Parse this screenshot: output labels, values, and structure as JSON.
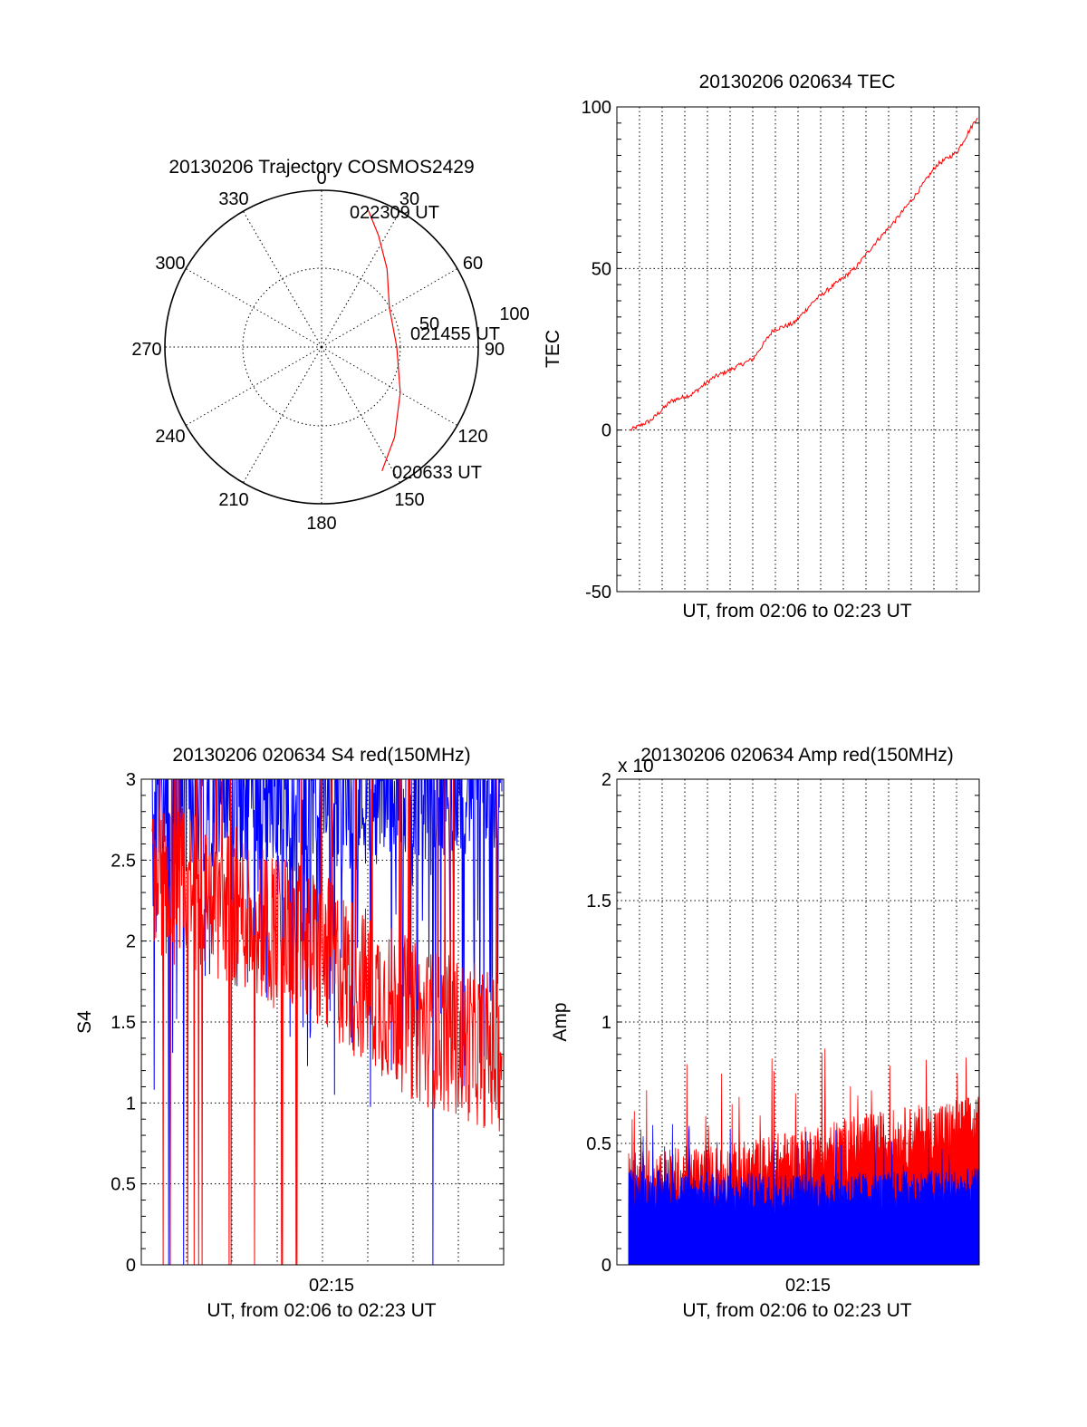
{
  "chart_data": [
    {
      "type": "polar",
      "title": "20130206 Trajectory COSMOS2429",
      "angle_labels": [
        "0",
        "30",
        "60",
        "90",
        "120",
        "150",
        "180",
        "210",
        "240",
        "270",
        "300",
        "330"
      ],
      "radial_labels": [
        "50",
        "100"
      ],
      "series": [
        {
          "color": "#ff0000",
          "points": [
            [
              19,
              92
            ],
            [
              27,
              80
            ],
            [
              40,
              65
            ],
            [
              60,
              50
            ],
            [
              90,
              48
            ],
            [
              120,
              58
            ],
            [
              141,
              74
            ],
            [
              154,
              88
            ]
          ]
        }
      ],
      "annotations": [
        "022309 UT",
        "021455 UT",
        "020633 UT"
      ]
    },
    {
      "type": "line",
      "title": "20130206 020634 TEC",
      "xlabel": "UT, from 02:06 to 02:23 UT",
      "ylabel": "TEC",
      "ylim": [
        -50,
        100
      ],
      "yticks": [
        "-50",
        "0",
        "50",
        "100"
      ],
      "xlim": [
        "02:06",
        "02:23"
      ],
      "series": [
        {
          "color": "#ff0000",
          "x": [
            "02:06",
            "02:07",
            "02:08",
            "02:09",
            "02:10",
            "02:11",
            "02:12",
            "02:13",
            "02:14",
            "02:15",
            "02:16",
            "02:17",
            "02:18",
            "02:19",
            "02:20",
            "02:21",
            "02:22",
            "02:23"
          ],
          "values": [
            0,
            3,
            9,
            11,
            16,
            19,
            22,
            31,
            33,
            40,
            45,
            50,
            58,
            65,
            73,
            82,
            86,
            97
          ]
        }
      ]
    },
    {
      "type": "line",
      "title": "20130206 020634 S4 red(150MHz)",
      "xlabel": "UT, from 02:06 to 02:23 UT",
      "ylabel": "S4",
      "ylim": [
        0,
        3
      ],
      "yticks": [
        "0",
        "0.5",
        "1",
        "1.5",
        "2",
        "2.5",
        "3"
      ],
      "xticks": [
        "02:15"
      ],
      "series": [
        {
          "color": "#0000ff",
          "trend_x": [
            0,
            0.25,
            0.5,
            0.75,
            1
          ],
          "trend_y": [
            2.7,
            2.75,
            2.7,
            2.8,
            2.85
          ]
        },
        {
          "color": "#ff0000",
          "trend_x": [
            0,
            0.25,
            0.5,
            0.75,
            1
          ],
          "trend_y": [
            2.4,
            2.2,
            1.9,
            1.5,
            1.3
          ]
        }
      ]
    },
    {
      "type": "area",
      "title": "20130206 020634 Amp red(150MHz)",
      "xlabel": "UT, from 02:06 to 02:23 UT",
      "ylabel": "Amp",
      "ylim": [
        0,
        2
      ],
      "yticks": [
        "0",
        "0.5",
        "1",
        "1.5",
        "2"
      ],
      "xticks": [
        "02:15"
      ],
      "scale_label": "x 10",
      "series": [
        {
          "color": "#ff0000",
          "trend_x": [
            0,
            0.3,
            0.6,
            1
          ],
          "trend_y": [
            0.32,
            0.35,
            0.45,
            0.55
          ]
        },
        {
          "color": "#0000ff",
          "trend_x": [
            0,
            0.3,
            0.6,
            1
          ],
          "trend_y": [
            0.3,
            0.28,
            0.28,
            0.3
          ]
        }
      ]
    }
  ]
}
